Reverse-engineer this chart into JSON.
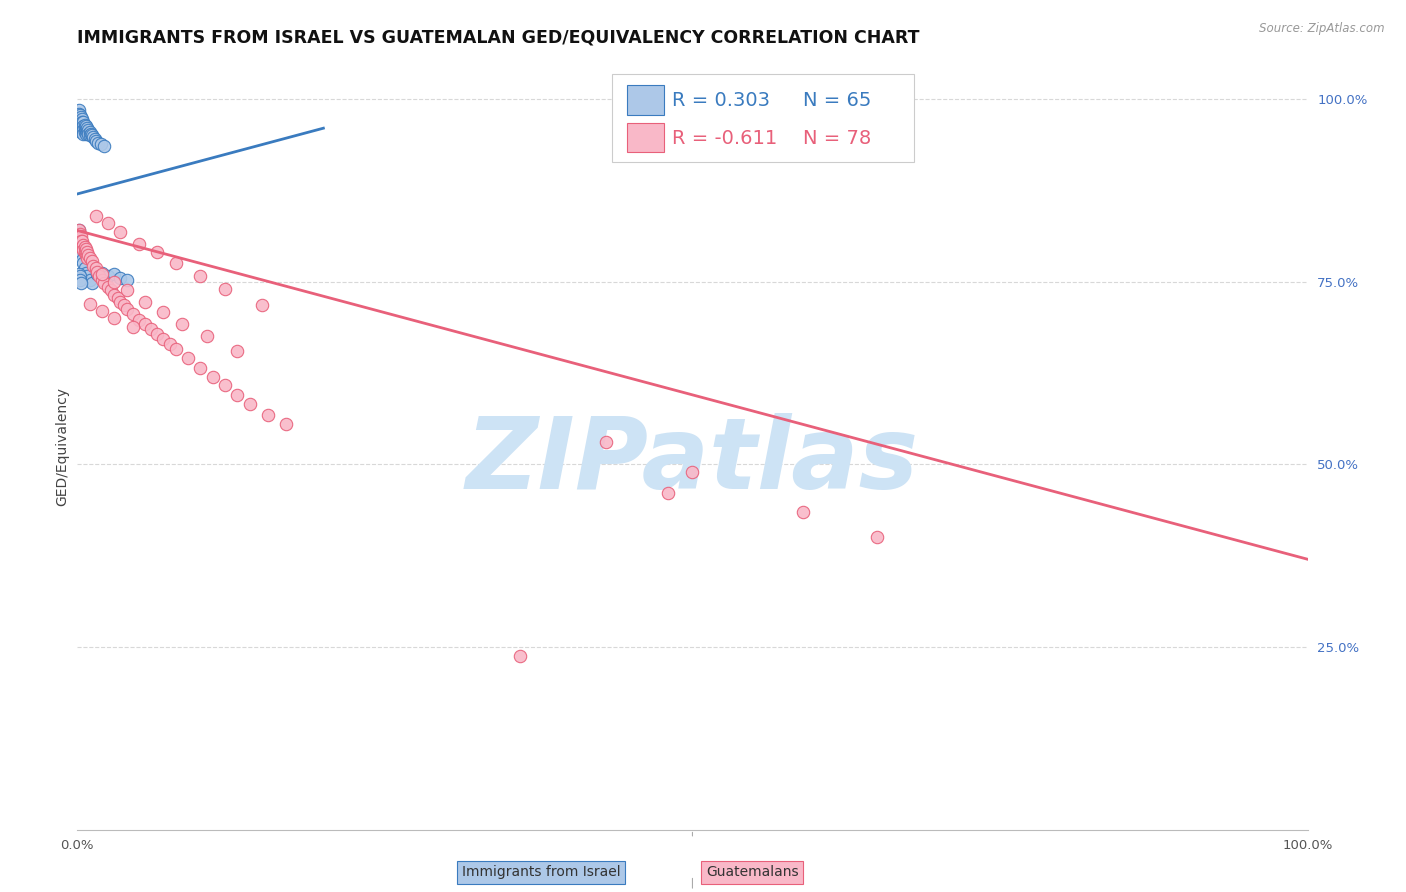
{
  "title": "IMMIGRANTS FROM ISRAEL VS GUATEMALAN GED/EQUIVALENCY CORRELATION CHART",
  "source": "Source: ZipAtlas.com",
  "ylabel": "GED/Equivalency",
  "right_yticks": [
    "25.0%",
    "50.0%",
    "75.0%",
    "100.0%"
  ],
  "right_ytick_vals": [
    0.25,
    0.5,
    0.75,
    1.0
  ],
  "legend_blue_r": "R = 0.303",
  "legend_blue_n": "N = 65",
  "legend_pink_r": "R = -0.611",
  "legend_pink_n": "N = 78",
  "blue_fill": "#adc8e8",
  "pink_fill": "#f9b8c8",
  "blue_edge": "#3a7bbf",
  "pink_edge": "#e8607a",
  "blue_line_color": "#3a7bbf",
  "pink_line_color": "#e8607a",
  "legend_blue_color": "#3a7bbf",
  "legend_pink_color": "#e8607a",
  "watermark": "ZIPatlas",
  "watermark_color": "#cde3f5",
  "blue_scatter_x": [
    0.001,
    0.001,
    0.001,
    0.002,
    0.002,
    0.002,
    0.002,
    0.003,
    0.003,
    0.003,
    0.003,
    0.003,
    0.004,
    0.004,
    0.004,
    0.004,
    0.005,
    0.005,
    0.005,
    0.005,
    0.006,
    0.006,
    0.006,
    0.007,
    0.007,
    0.007,
    0.008,
    0.008,
    0.009,
    0.009,
    0.01,
    0.01,
    0.011,
    0.012,
    0.013,
    0.014,
    0.015,
    0.017,
    0.019,
    0.022,
    0.001,
    0.001,
    0.002,
    0.002,
    0.003,
    0.003,
    0.004,
    0.004,
    0.005,
    0.006,
    0.007,
    0.008,
    0.01,
    0.012,
    0.016,
    0.02,
    0.025,
    0.03,
    0.035,
    0.04,
    0.001,
    0.001,
    0.002,
    0.002,
    0.003
  ],
  "blue_scatter_y": [
    0.985,
    0.98,
    0.975,
    0.978,
    0.972,
    0.968,
    0.962,
    0.975,
    0.97,
    0.965,
    0.96,
    0.955,
    0.972,
    0.968,
    0.962,
    0.957,
    0.968,
    0.963,
    0.958,
    0.952,
    0.965,
    0.96,
    0.955,
    0.963,
    0.957,
    0.952,
    0.96,
    0.955,
    0.958,
    0.952,
    0.955,
    0.95,
    0.952,
    0.95,
    0.948,
    0.945,
    0.942,
    0.94,
    0.938,
    0.935,
    0.82,
    0.81,
    0.808,
    0.805,
    0.8,
    0.795,
    0.788,
    0.78,
    0.775,
    0.768,
    0.762,
    0.758,
    0.752,
    0.748,
    0.76,
    0.762,
    0.758,
    0.76,
    0.755,
    0.752,
    0.76,
    0.755,
    0.758,
    0.752,
    0.748
  ],
  "pink_scatter_x": [
    0.001,
    0.001,
    0.002,
    0.002,
    0.002,
    0.003,
    0.003,
    0.003,
    0.004,
    0.004,
    0.005,
    0.005,
    0.006,
    0.006,
    0.007,
    0.007,
    0.008,
    0.008,
    0.009,
    0.01,
    0.012,
    0.013,
    0.015,
    0.016,
    0.018,
    0.02,
    0.022,
    0.025,
    0.027,
    0.03,
    0.033,
    0.035,
    0.038,
    0.04,
    0.045,
    0.05,
    0.055,
    0.06,
    0.065,
    0.07,
    0.075,
    0.08,
    0.09,
    0.1,
    0.11,
    0.12,
    0.13,
    0.14,
    0.155,
    0.17,
    0.015,
    0.025,
    0.035,
    0.05,
    0.065,
    0.08,
    0.1,
    0.12,
    0.15,
    0.02,
    0.03,
    0.04,
    0.055,
    0.07,
    0.085,
    0.105,
    0.13,
    0.01,
    0.02,
    0.03,
    0.045,
    0.5,
    0.59,
    0.65,
    0.43,
    0.48,
    0.36
  ],
  "pink_scatter_y": [
    0.82,
    0.81,
    0.815,
    0.808,
    0.8,
    0.812,
    0.805,
    0.798,
    0.805,
    0.798,
    0.8,
    0.793,
    0.798,
    0.79,
    0.795,
    0.787,
    0.79,
    0.783,
    0.787,
    0.783,
    0.778,
    0.772,
    0.768,
    0.763,
    0.758,
    0.752,
    0.748,
    0.742,
    0.738,
    0.732,
    0.728,
    0.722,
    0.718,
    0.712,
    0.705,
    0.698,
    0.692,
    0.685,
    0.678,
    0.672,
    0.665,
    0.658,
    0.645,
    0.632,
    0.62,
    0.608,
    0.595,
    0.582,
    0.568,
    0.555,
    0.84,
    0.83,
    0.818,
    0.802,
    0.79,
    0.775,
    0.758,
    0.74,
    0.718,
    0.76,
    0.75,
    0.738,
    0.722,
    0.708,
    0.692,
    0.675,
    0.655,
    0.72,
    0.71,
    0.7,
    0.688,
    0.49,
    0.435,
    0.4,
    0.53,
    0.46,
    0.238
  ],
  "blue_line_x": [
    0.0,
    0.2
  ],
  "blue_line_y": [
    0.87,
    0.96
  ],
  "pink_line_x": [
    0.0,
    1.0
  ],
  "pink_line_y": [
    0.82,
    0.37
  ],
  "xlim": [
    0.0,
    1.0
  ],
  "ylim": [
    0.0,
    1.05
  ],
  "grid_color": "#d8d8d8",
  "title_fontsize": 12.5,
  "axis_label_fontsize": 10,
  "tick_fontsize": 9.5
}
